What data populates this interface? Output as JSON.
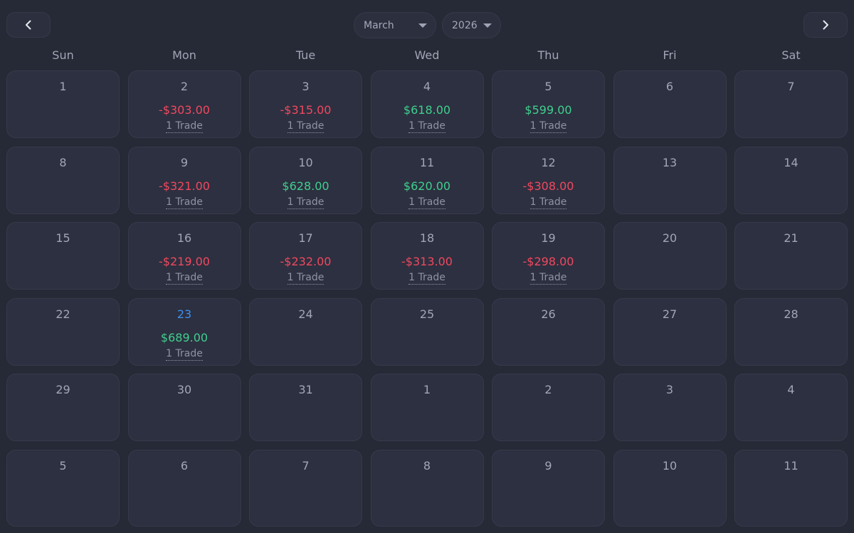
{
  "header": {
    "month": "March",
    "year": "2026",
    "prev_icon": "chevron-left-icon",
    "next_icon": "chevron-right-icon"
  },
  "weekdays": [
    "Sun",
    "Mon",
    "Tue",
    "Wed",
    "Thu",
    "Fri",
    "Sat"
  ],
  "colors": {
    "background": "#262936",
    "cell": "#2d3040",
    "loss": "#f0485f",
    "profit": "#3fcf8e",
    "today": "#3d8ff0"
  },
  "days": [
    {
      "day": "1"
    },
    {
      "day": "2",
      "pnl": "-$303.00",
      "trades": "1 Trade"
    },
    {
      "day": "3",
      "pnl": "-$315.00",
      "trades": "1 Trade"
    },
    {
      "day": "4",
      "pnl": "$618.00",
      "trades": "1 Trade"
    },
    {
      "day": "5",
      "pnl": "$599.00",
      "trades": "1 Trade"
    },
    {
      "day": "6"
    },
    {
      "day": "7"
    },
    {
      "day": "8"
    },
    {
      "day": "9",
      "pnl": "-$321.00",
      "trades": "1 Trade"
    },
    {
      "day": "10",
      "pnl": "$628.00",
      "trades": "1 Trade"
    },
    {
      "day": "11",
      "pnl": "$620.00",
      "trades": "1 Trade"
    },
    {
      "day": "12",
      "pnl": "-$308.00",
      "trades": "1 Trade"
    },
    {
      "day": "13"
    },
    {
      "day": "14"
    },
    {
      "day": "15"
    },
    {
      "day": "16",
      "pnl": "-$219.00",
      "trades": "1 Trade"
    },
    {
      "day": "17",
      "pnl": "-$232.00",
      "trades": "1 Trade"
    },
    {
      "day": "18",
      "pnl": "-$313.00",
      "trades": "1 Trade"
    },
    {
      "day": "19",
      "pnl": "-$298.00",
      "trades": "1 Trade"
    },
    {
      "day": "20"
    },
    {
      "day": "21"
    },
    {
      "day": "22"
    },
    {
      "day": "23",
      "pnl": "$689.00",
      "trades": "1 Trade",
      "today": true
    },
    {
      "day": "24"
    },
    {
      "day": "25"
    },
    {
      "day": "26"
    },
    {
      "day": "27"
    },
    {
      "day": "28"
    },
    {
      "day": "29"
    },
    {
      "day": "30"
    },
    {
      "day": "31"
    },
    {
      "day": "1",
      "outside": true
    },
    {
      "day": "2",
      "outside": true
    },
    {
      "day": "3",
      "outside": true
    },
    {
      "day": "4",
      "outside": true
    },
    {
      "day": "5",
      "outside": true
    },
    {
      "day": "6",
      "outside": true
    },
    {
      "day": "7",
      "outside": true
    },
    {
      "day": "8",
      "outside": true
    },
    {
      "day": "9",
      "outside": true
    },
    {
      "day": "10",
      "outside": true
    },
    {
      "day": "11",
      "outside": true
    }
  ]
}
